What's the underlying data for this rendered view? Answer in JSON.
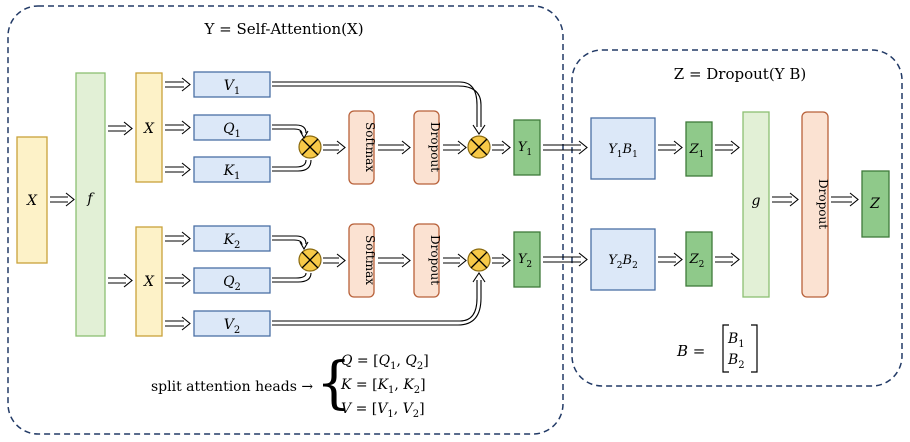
{
  "attention_panel": {
    "title": "Y = Self-Attention(X)"
  },
  "dropout_panel": {
    "title": "Z = Dropout(Y B)"
  },
  "input": {
    "label": "X"
  },
  "projection": {
    "label": "f"
  },
  "heads": [
    {
      "input_label": "X",
      "top": {
        "letter": "V",
        "index": "1"
      },
      "mid": {
        "letter": "Q",
        "index": "1"
      },
      "bot": {
        "letter": "K",
        "index": "1"
      },
      "softmax_label": "Softmax",
      "dropout_label": "Dropout",
      "output": {
        "letter": "Y",
        "index": "1"
      },
      "product": {
        "text": "Y",
        "sub1": "1",
        "text2": "B",
        "sub2": "1"
      },
      "z": {
        "letter": "Z",
        "index": "1"
      }
    },
    {
      "input_label": "X",
      "top": {
        "letter": "K",
        "index": "2"
      },
      "mid": {
        "letter": "Q",
        "index": "2"
      },
      "bot": {
        "letter": "V",
        "index": "2"
      },
      "softmax_label": "Softmax",
      "dropout_label": "Dropout",
      "output": {
        "letter": "Y",
        "index": "2"
      },
      "product": {
        "text": "Y",
        "sub1": "2",
        "text2": "B",
        "sub2": "2"
      },
      "z": {
        "letter": "Z",
        "index": "2"
      }
    }
  ],
  "combine": {
    "label": "g"
  },
  "final_dropout": {
    "label": "Dropout"
  },
  "final_output": {
    "label": "Z"
  },
  "split_note": {
    "prefix": "split attention heads →",
    "lines": [
      "Q = [Q",
      "K = [K",
      "V = [V"
    ],
    "letters": [
      "Q",
      "K",
      "V"
    ]
  },
  "b_matrix": {
    "lhs": "B =",
    "row1": "1",
    "row2": "2"
  },
  "colors": {
    "yellow_fill": "#fdf2c8",
    "yellow_stroke": "#c9a23a",
    "green_dark_fill": "#8fc98a",
    "green_dark_stroke": "#3f7a3a",
    "green_light_fill": "#e2f0d6",
    "green_light_stroke": "#8cbf72",
    "blue_fill": "#dce8f8",
    "blue_stroke": "#4a6fa5",
    "orange_fill": "#fbe2d2",
    "orange_stroke": "#b8613a",
    "multiply_fill": "#f7c948",
    "panel_stroke": "#223a66"
  }
}
